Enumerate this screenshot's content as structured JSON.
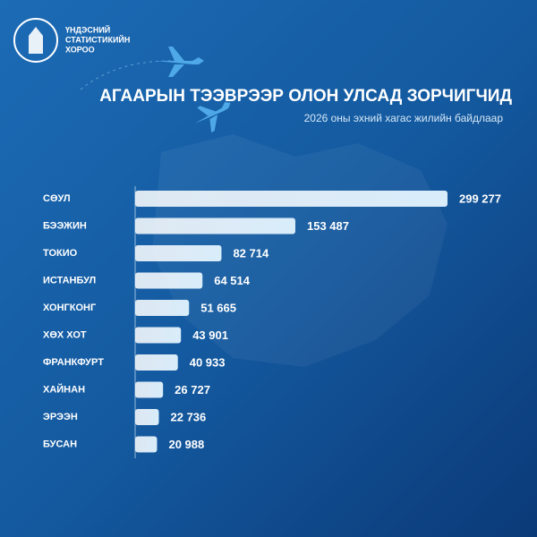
{
  "org": [
    "ҮНДЭСНИЙ",
    "СТАТИСТИКИЙН",
    "ХОРОО"
  ],
  "chart_data": {
    "type": "bar",
    "orientation": "horizontal",
    "title": "АГААРЫН ТЭЭВРЭЭР ОЛОН УЛСАД ЗОРЧИГЧИД",
    "subtitle": "2026 оны эхний хагас жилийн байдлаар",
    "categories": [
      "СӨУЛ",
      "БЭЭЖИН",
      "ТОКИО",
      "ИСТАНБУЛ",
      "ХОНГКОНГ",
      "ХӨХ ХОТ",
      "ФРАНКФУРТ",
      "ХАЙНАН",
      "ЭРЭЭН",
      "БУСАН"
    ],
    "values": [
      299277,
      153487,
      82714,
      64514,
      51665,
      43901,
      40933,
      26727,
      22736,
      20988
    ],
    "value_labels": [
      "299 277",
      "153 487",
      "82 714",
      "64 514",
      "51 665",
      "43 901",
      "40 933",
      "26 727",
      "22 736",
      "20 988"
    ],
    "color": "#cfe6f7"
  }
}
